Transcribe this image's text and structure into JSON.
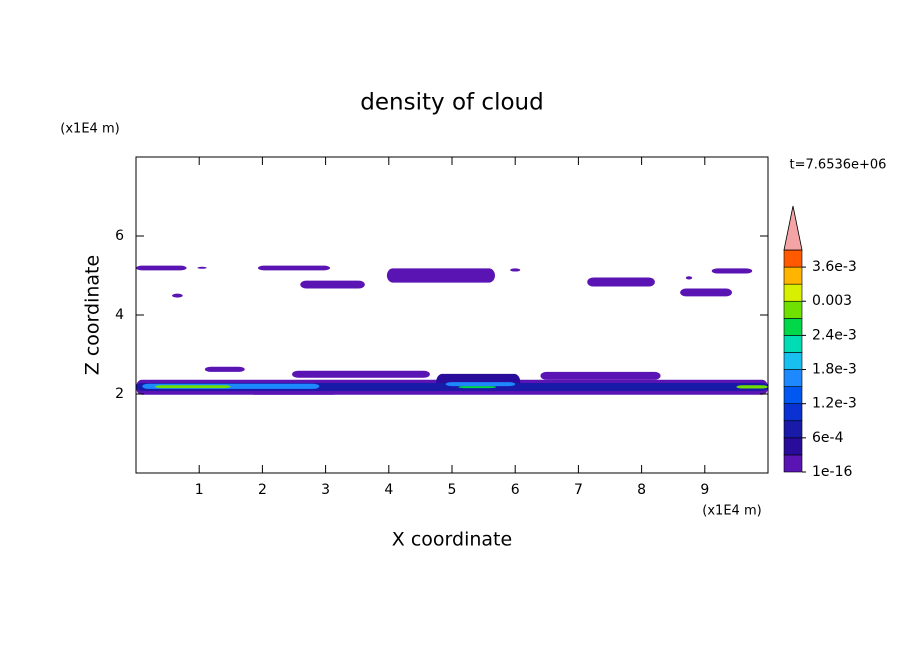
{
  "chart_data": {
    "type": "contour",
    "title": "density of cloud",
    "x_label": "X coordinate",
    "y_label": "Z coordinate",
    "x_unit": "(x1E4 m)",
    "y_unit": "(x1E4 m)",
    "time_label": "t=7.6536e+06",
    "xlim": [
      0,
      10
    ],
    "ylim": [
      0,
      8
    ],
    "xticks": [
      1,
      2,
      3,
      4,
      5,
      6,
      7,
      8,
      9
    ],
    "yticks": [
      2,
      4,
      6
    ],
    "clim": [
      0,
      0.0039
    ],
    "levels": [
      0,
      0.0003,
      0.0006,
      0.0009,
      0.0012,
      0.0015,
      0.0018,
      0.0021,
      0.0024,
      0.0027,
      0.003,
      0.0033,
      0.0036,
      0.0039
    ],
    "colors": [
      "#5a14b4",
      "#2a0c9a",
      "#1a1aa8",
      "#0a32d2",
      "#0058f0",
      "#1e88ff",
      "#18c0f0",
      "#00dcb4",
      "#00d84a",
      "#70e000",
      "#d8f000",
      "#ffb400",
      "#ff5a00"
    ],
    "extend_color": "#f4a4a4",
    "colorbar_ticks": [
      {
        "value": 0,
        "label": "1e-16"
      },
      {
        "value": 0.0006,
        "label": "6e-4"
      },
      {
        "value": 0.0012,
        "label": "1.2e-3"
      },
      {
        "value": 0.0018,
        "label": "1.8e-3"
      },
      {
        "value": 0.0024,
        "label": "2.4e-3"
      },
      0.003,
      {
        "value": 0.0036,
        "label": "3.6e-3"
      }
    ],
    "patches": [
      {
        "x": [
          0,
          0.8
        ],
        "z": [
          5.13,
          5.25
        ],
        "density": 0.0001
      },
      {
        "x": [
          0.97,
          1.12
        ],
        "z": [
          5.17,
          5.22
        ],
        "density": 0.0001
      },
      {
        "x": [
          1.93,
          3.07
        ],
        "z": [
          5.13,
          5.25
        ],
        "density": 0.0001
      },
      {
        "x": [
          0.57,
          0.74
        ],
        "z": [
          4.44,
          4.54
        ],
        "density": 0.0001
      },
      {
        "x": [
          2.6,
          3.62
        ],
        "z": [
          4.67,
          4.87
        ],
        "density": 0.0001
      },
      {
        "x": [
          3.97,
          5.68
        ],
        "z": [
          4.82,
          5.18
        ],
        "density": 0.0001
      },
      {
        "x": [
          5.92,
          6.08
        ],
        "z": [
          5.1,
          5.18
        ],
        "density": 0.0001
      },
      {
        "x": [
          7.14,
          8.21
        ],
        "z": [
          4.72,
          4.95
        ],
        "density": 0.0001
      },
      {
        "x": [
          8.7,
          8.8
        ],
        "z": [
          4.9,
          4.98
        ],
        "density": 0.0001
      },
      {
        "x": [
          9.11,
          9.75
        ],
        "z": [
          5.05,
          5.18
        ],
        "density": 0.0001
      },
      {
        "x": [
          8.61,
          9.43
        ],
        "z": [
          4.47,
          4.67
        ],
        "density": 0.0001
      },
      {
        "x": [
          1.09,
          1.72
        ],
        "z": [
          2.56,
          2.69
        ],
        "density": 0.0001
      },
      {
        "x": [
          2.47,
          4.65
        ],
        "z": [
          2.41,
          2.59
        ],
        "density": 0.0001
      },
      {
        "x": [
          6.4,
          8.3
        ],
        "z": [
          2.36,
          2.56
        ],
        "density": 0.0001
      },
      {
        "x": [
          1.8,
          3.2
        ],
        "z": [
          1.98,
          2.1
        ],
        "density": 0.0001
      },
      {
        "x": [
          0,
          10
        ],
        "z": [
          1.98,
          2.36
        ],
        "density": 0.0001
      },
      {
        "x": [
          4.75,
          6.08
        ],
        "z": [
          2.1,
          2.51
        ],
        "density": 0.0004
      },
      {
        "x": [
          0,
          10
        ],
        "z": [
          2.08,
          2.28
        ],
        "density": 0.0007
      },
      {
        "x": [
          0.1,
          2.9
        ],
        "z": [
          2.13,
          2.26
        ],
        "density": 0.0016
      },
      {
        "x": [
          4.9,
          6.0
        ],
        "z": [
          2.2,
          2.3
        ],
        "density": 0.0016
      },
      {
        "x": [
          0.3,
          1.5
        ],
        "z": [
          2.15,
          2.22
        ],
        "density": 0.0028
      },
      {
        "x": [
          5.1,
          5.7
        ],
        "z": [
          2.15,
          2.2
        ],
        "density": 0.0025
      },
      {
        "x": [
          9.5,
          10
        ],
        "z": [
          2.14,
          2.22
        ],
        "density": 0.0028
      }
    ]
  }
}
